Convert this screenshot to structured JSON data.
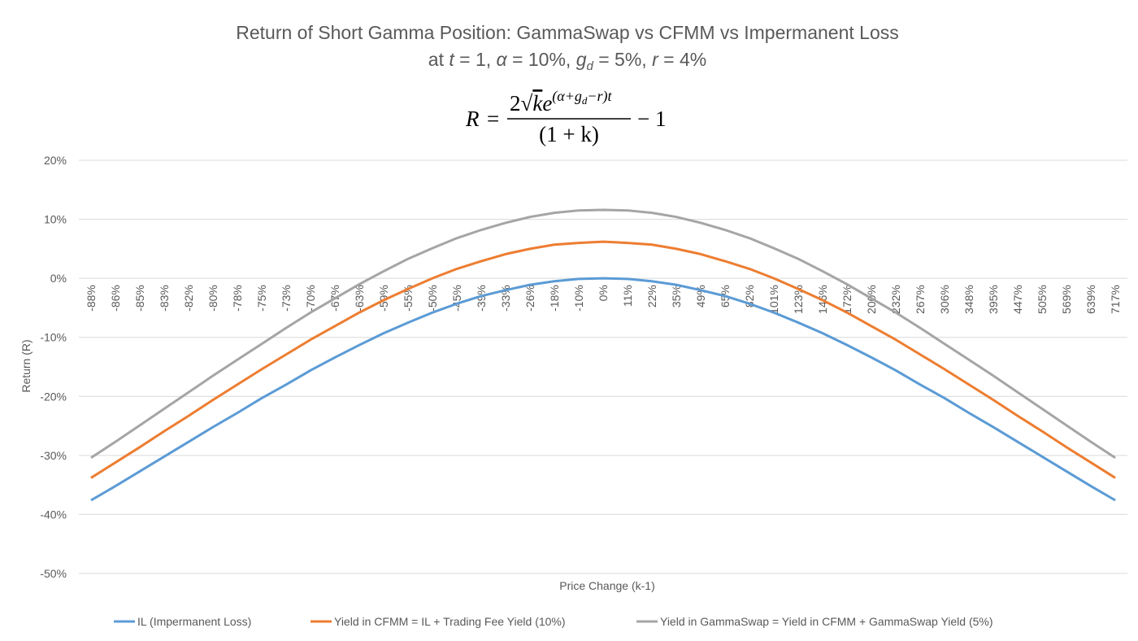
{
  "chart_data": {
    "type": "line",
    "title": "Return of Short Gamma Position: GammaSwap vs CFMM vs Impermanent Loss",
    "subtitle": [
      "at ",
      "t",
      " = 1, ",
      "α",
      " = 10%, ",
      "g",
      "d",
      " = 5%, ",
      "r",
      " = 4%"
    ],
    "formula": [
      "R",
      "=",
      "2",
      "√",
      "k",
      "e",
      "(α+g",
      "d",
      "−r)t",
      "(1 + k)",
      "− 1"
    ],
    "x_label": "Price Change (k-1)",
    "y_label": "Return (R)",
    "categories": [
      "-88%",
      "-86%",
      "-85%",
      "-83%",
      "-82%",
      "-80%",
      "-78%",
      "-75%",
      "-73%",
      "-70%",
      "-67%",
      "-63%",
      "-59%",
      "-55%",
      "-50%",
      "-45%",
      "-39%",
      "-33%",
      "-26%",
      "-18%",
      "-10%",
      "0%",
      "11%",
      "22%",
      "35%",
      "49%",
      "65%",
      "82%",
      "101%",
      "123%",
      "146%",
      "172%",
      "200%",
      "232%",
      "267%",
      "306%",
      "348%",
      "395%",
      "447%",
      "505%",
      "569%",
      "639%",
      "717%"
    ],
    "series": [
      {
        "name": "IL (Impermanent Loss)",
        "color": "#5b9bd5",
        "values": [
          -37.6,
          -35.2,
          -32.7,
          -30.2,
          -27.7,
          -25.2,
          -22.8,
          -20.3,
          -18.0,
          -15.6,
          -13.4,
          -11.3,
          -9.3,
          -7.5,
          -5.8,
          -4.3,
          -3.0,
          -2.0,
          -1.1,
          -0.5,
          -0.1,
          0,
          -0.1,
          -0.5,
          -1.1,
          -2.0,
          -3.0,
          -4.3,
          -5.8,
          -7.5,
          -9.3,
          -11.3,
          -13.4,
          -15.6,
          -18.0,
          -20.3,
          -22.8,
          -25.2,
          -27.7,
          -30.2,
          -32.7,
          -35.2,
          -37.6
        ]
      },
      {
        "name": "Yield in CFMM = IL + Trading Fee Yield (10%)",
        "color": "#ed7d31",
        "values": [
          -33.8,
          -31.2,
          -28.6,
          -25.9,
          -23.3,
          -20.6,
          -18.0,
          -15.4,
          -12.9,
          -10.4,
          -8.1,
          -5.8,
          -3.7,
          -1.8,
          0.0,
          1.6,
          2.9,
          4.1,
          5.0,
          5.7,
          6.0,
          6.2,
          6.0,
          5.7,
          5.0,
          4.1,
          2.9,
          1.6,
          0.0,
          -1.8,
          -3.7,
          -5.8,
          -8.1,
          -10.4,
          -12.9,
          -15.4,
          -18.0,
          -20.6,
          -23.3,
          -25.9,
          -28.6,
          -31.2,
          -33.8
        ]
      },
      {
        "name": "Yield in GammaSwap = Yield in CFMM + GammaSwap Yield (5%)",
        "color": "#a5a5a5",
        "values": [
          -30.4,
          -27.7,
          -24.9,
          -22.1,
          -19.3,
          -16.5,
          -13.8,
          -11.1,
          -8.4,
          -5.8,
          -3.4,
          -1.0,
          1.2,
          3.3,
          5.1,
          6.8,
          8.2,
          9.4,
          10.4,
          11.1,
          11.5,
          11.6,
          11.5,
          11.1,
          10.4,
          9.4,
          8.2,
          6.8,
          5.1,
          3.3,
          1.2,
          -1.0,
          -3.4,
          -5.8,
          -8.4,
          -11.1,
          -13.8,
          -16.5,
          -19.3,
          -22.1,
          -24.9,
          -27.7,
          -30.4
        ]
      }
    ],
    "ylim": [
      -50,
      20
    ],
    "yticks": [
      {
        "value": -50,
        "label": "-50%"
      },
      {
        "value": -40,
        "label": "-40%"
      },
      {
        "value": -30,
        "label": "-30%"
      },
      {
        "value": -20,
        "label": "-20%"
      },
      {
        "value": -10,
        "label": "-10%"
      },
      {
        "value": 0,
        "label": "0%"
      },
      {
        "value": 10,
        "label": "10%"
      },
      {
        "value": 20,
        "label": "20%"
      }
    ],
    "grid": true,
    "legend": "bottom"
  }
}
